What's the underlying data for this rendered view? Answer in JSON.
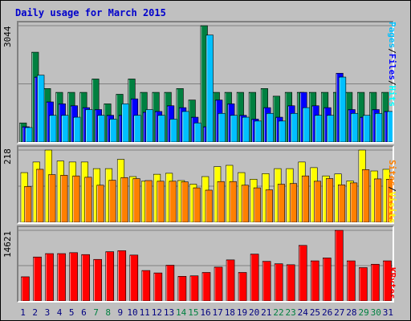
{
  "title": "Daily usage for March 2015",
  "colors": {
    "hits": "#00ffff",
    "hits_bar": "#008040",
    "files": "#0000ff",
    "pages": "#00c0ff",
    "sites": "#ff8000",
    "visits": "#ffff00",
    "kbytes": "#ff0000",
    "weekday_label": "#000080",
    "weekend_label": "#008040"
  },
  "axis": {
    "hits_max_label": "3044",
    "sites_max_label": "218",
    "kbytes_max_label": "14621",
    "legend_top": [
      "Pages",
      "/",
      "Files",
      "/",
      "Hits"
    ],
    "legend_mid": [
      "Sites",
      "/",
      "Visits"
    ],
    "legend_bottom": [
      "KBytes"
    ]
  },
  "chart_data": [
    {
      "type": "bar",
      "title": "Daily usage for March 2015",
      "ylim": [
        0,
        3044
      ],
      "categories": [
        "1",
        "2",
        "3",
        "4",
        "5",
        "6",
        "7",
        "8",
        "9",
        "10",
        "11",
        "12",
        "13",
        "14",
        "15",
        "16",
        "17",
        "18",
        "19",
        "20",
        "21",
        "22",
        "23",
        "24",
        "25",
        "26",
        "27",
        "28",
        "29",
        "30",
        "31"
      ],
      "weekend": [
        false,
        false,
        false,
        false,
        false,
        false,
        true,
        true,
        false,
        false,
        false,
        false,
        false,
        true,
        true,
        false,
        false,
        false,
        false,
        false,
        false,
        true,
        true,
        false,
        false,
        false,
        false,
        false,
        true,
        true,
        false
      ],
      "series": [
        {
          "name": "Hits",
          "values": [
            500,
            2350,
            1400,
            1300,
            1300,
            1300,
            1650,
            1000,
            1250,
            1650,
            1300,
            1300,
            1300,
            1400,
            1100,
            3044,
            1300,
            1300,
            1300,
            1300,
            1400,
            1200,
            1300,
            1300,
            1300,
            1300,
            1300,
            1300,
            1300,
            1300,
            1300
          ]
        },
        {
          "name": "Files",
          "values": [
            400,
            1700,
            1050,
            1000,
            950,
            900,
            850,
            700,
            700,
            1130,
            780,
            800,
            950,
            900,
            650,
            400,
            1100,
            1000,
            700,
            600,
            900,
            650,
            950,
            1300,
            950,
            900,
            1800,
            850,
            650,
            850,
            800
          ]
        },
        {
          "name": "Pages",
          "values": [
            380,
            1750,
            700,
            700,
            650,
            850,
            700,
            600,
            1000,
            700,
            850,
            700,
            600,
            800,
            500,
            2800,
            750,
            700,
            650,
            550,
            750,
            550,
            750,
            900,
            700,
            700,
            1700,
            750,
            700,
            750,
            800
          ]
        }
      ]
    },
    {
      "type": "bar",
      "ylim": [
        0,
        218
      ],
      "categories": [
        "1",
        "2",
        "3",
        "4",
        "5",
        "6",
        "7",
        "8",
        "9",
        "10",
        "11",
        "12",
        "13",
        "14",
        "15",
        "16",
        "17",
        "18",
        "19",
        "20",
        "21",
        "22",
        "23",
        "24",
        "25",
        "26",
        "27",
        "28",
        "29",
        "30",
        "31"
      ],
      "series": [
        {
          "name": "Visits",
          "values": [
            150,
            182,
            218,
            185,
            182,
            182,
            162,
            162,
            190,
            138,
            124,
            145,
            148,
            126,
            115,
            138,
            168,
            172,
            150,
            130,
            147,
            162,
            162,
            182,
            165,
            140,
            146,
            125,
            218,
            155,
            160
          ]
        },
        {
          "name": "Sites",
          "values": [
            108,
            160,
            144,
            142,
            140,
            136,
            112,
            127,
            135,
            132,
            126,
            124,
            124,
            122,
            104,
            97,
            123,
            123,
            112,
            104,
            98,
            115,
            117,
            140,
            124,
            132,
            113,
            119,
            159,
            131,
            130
          ]
        }
      ]
    },
    {
      "type": "bar",
      "ylim": [
        0,
        14621
      ],
      "categories": [
        "1",
        "2",
        "3",
        "4",
        "5",
        "6",
        "7",
        "8",
        "9",
        "10",
        "11",
        "12",
        "13",
        "14",
        "15",
        "16",
        "17",
        "18",
        "19",
        "20",
        "21",
        "22",
        "23",
        "24",
        "25",
        "26",
        "27",
        "28",
        "29",
        "30",
        "31"
      ],
      "series": [
        {
          "name": "KBytes",
          "values": [
            5000,
            9100,
            9800,
            9800,
            10000,
            9600,
            8600,
            10200,
            10400,
            9500,
            6300,
            5800,
            7400,
            5100,
            5200,
            5900,
            7000,
            8500,
            5900,
            9700,
            8200,
            7700,
            7500,
            11500,
            8300,
            8900,
            14621,
            8300,
            6900,
            7600,
            8300
          ]
        }
      ]
    }
  ]
}
